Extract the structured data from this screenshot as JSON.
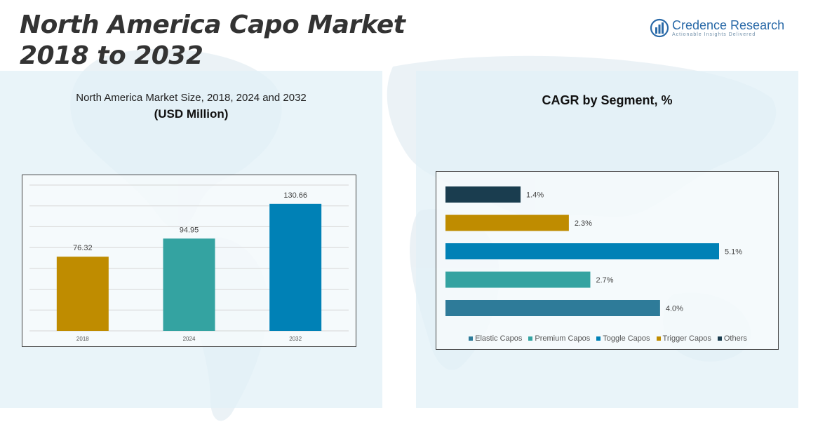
{
  "header": {
    "title_line1": "North America Capo Market",
    "title_line2": "2018 to 2032"
  },
  "logo": {
    "name": "Credence Research",
    "tagline": "Actionable Insights Delivered",
    "icon": "bar-chart-globe-icon"
  },
  "colors": {
    "accent_gold": "#bf8c00",
    "accent_teal": "#34a3a1",
    "accent_blue": "#0081b6",
    "accent_steel": "#2e7b99",
    "accent_navy": "#1a3d4f",
    "panel_bg": "#e1f0f6"
  },
  "chart_data": [
    {
      "type": "bar",
      "title": "North America Market Size, 2018, 2024 and 2032",
      "subtitle": "(USD Million)",
      "categories": [
        "2018",
        "2024",
        "2032"
      ],
      "values": [
        76.32,
        94.95,
        130.66
      ],
      "value_labels": [
        "76.32",
        "94.95",
        "130.66"
      ],
      "colors": [
        "#bf8c00",
        "#34a3a1",
        "#0081b6"
      ],
      "ylim": [
        0,
        150
      ],
      "grid": true,
      "xlabel": "",
      "ylabel": ""
    },
    {
      "type": "bar",
      "orientation": "horizontal",
      "title": "CAGR by Segment, %",
      "categories": [
        "Others",
        "Trigger Capos",
        "Toggle Capos",
        "Premium Capos",
        "Elastic Capos"
      ],
      "values": [
        1.4,
        2.3,
        5.1,
        2.7,
        4.0
      ],
      "value_labels": [
        "1.4%",
        "2.3%",
        "5.1%",
        "2.7%",
        "4.0%"
      ],
      "colors": [
        "#1a3d4f",
        "#bf8c00",
        "#0081b6",
        "#34a3a1",
        "#2e7b99"
      ],
      "xlim": [
        0,
        5.1
      ],
      "legend": {
        "placement": "bottom",
        "entries": [
          {
            "name": "Elastic Capos",
            "color": "#2e7b99"
          },
          {
            "name": "Premium Capos",
            "color": "#34a3a1"
          },
          {
            "name": "Toggle Capos",
            "color": "#0081b6"
          },
          {
            "name": "Trigger Capos",
            "color": "#bf8c00"
          },
          {
            "name": "Others",
            "color": "#1a3d4f"
          }
        ]
      }
    }
  ]
}
